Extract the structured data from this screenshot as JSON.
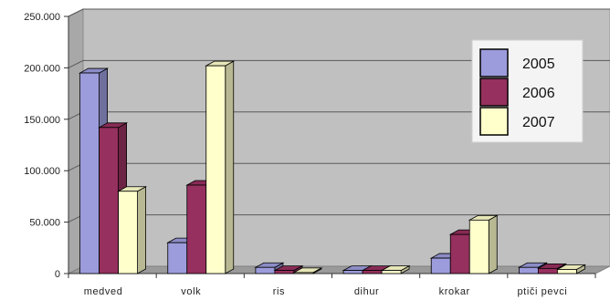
{
  "chart_data": {
    "type": "bar",
    "categories": [
      "medved",
      "volk",
      "ris",
      "dihur",
      "krokar",
      "ptiči pevci"
    ],
    "series": [
      {
        "name": "2005",
        "values": [
          195000,
          30000,
          6000,
          3000,
          15000,
          6000
        ],
        "color": "#9c9cdc"
      },
      {
        "name": "2006",
        "values": [
          142000,
          86000,
          3000,
          3000,
          38000,
          5000
        ],
        "color": "#96305e"
      },
      {
        "name": "2007",
        "values": [
          80000,
          202000,
          1000,
          3000,
          52000,
          4000
        ],
        "color": "#ffffcc"
      }
    ],
    "y_ticks": [
      "0",
      "50.000",
      "100.000",
      "150.000",
      "200.000",
      "250.000"
    ],
    "ylim": [
      0,
      250000
    ],
    "grid": true,
    "legend_position": "top-right",
    "plot_background": "#c0c0c0"
  }
}
